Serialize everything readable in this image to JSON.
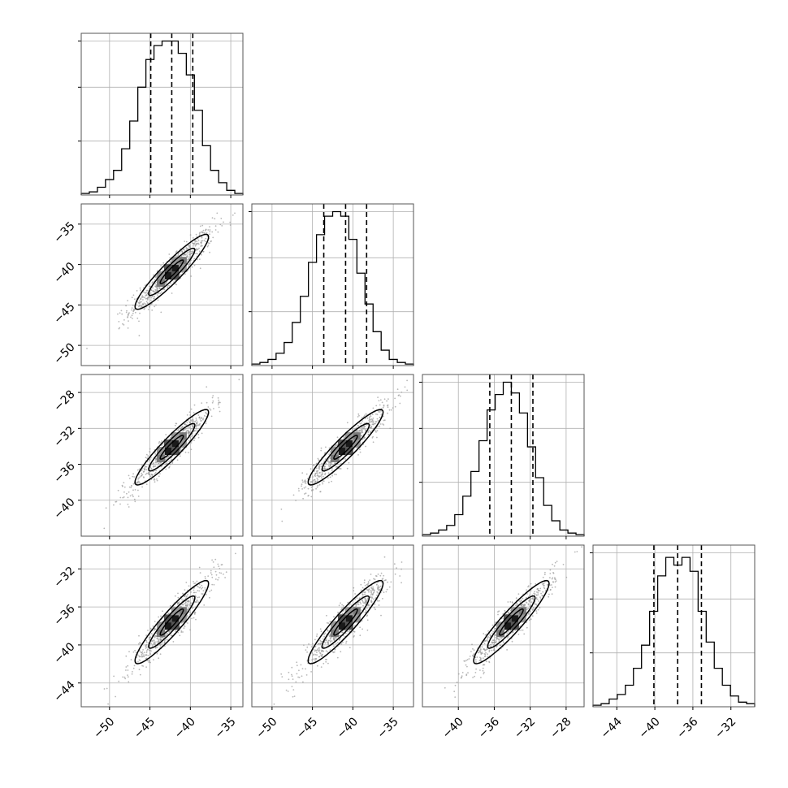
{
  "chart_data": {
    "type": "corner",
    "grid": true,
    "variables": [
      {
        "ticks": [
          -50,
          -45,
          -40,
          -35
        ],
        "tick_labels": [
          "−50",
          "−45",
          "−40",
          "−35"
        ],
        "xlim": [
          -53.5,
          -33.5
        ],
        "hist_ylim": [
          0,
          1.05
        ],
        "quantiles": [
          -44.9,
          -42.3,
          -39.7
        ],
        "hist_counts": [
          0.01,
          0.02,
          0.05,
          0.1,
          0.16,
          0.3,
          0.48,
          0.7,
          0.88,
          0.97,
          1.0,
          1.0,
          0.92,
          0.78,
          0.55,
          0.32,
          0.16,
          0.08,
          0.03,
          0.01
        ]
      },
      {
        "ticks": [
          -50,
          -45,
          -40,
          -35
        ],
        "tick_labels": [
          "−50",
          "−45",
          "−40",
          "−35"
        ],
        "xlim": [
          -52.5,
          -32.5
        ],
        "hist_ylim": [
          0,
          1.05
        ],
        "quantiles": [
          -43.6,
          -40.9,
          -38.3
        ],
        "hist_counts": [
          0.01,
          0.02,
          0.04,
          0.08,
          0.15,
          0.28,
          0.45,
          0.67,
          0.85,
          0.97,
          1.0,
          0.97,
          0.82,
          0.6,
          0.4,
          0.22,
          0.1,
          0.04,
          0.02,
          0.01
        ]
      },
      {
        "ticks": [
          -40,
          -36,
          -32,
          -28
        ],
        "tick_labels": [
          "−40",
          "−36",
          "−32",
          "−28"
        ],
        "xlim": [
          -44,
          -26
        ],
        "hist_ylim": [
          0,
          1.05
        ],
        "quantiles": [
          -36.5,
          -34.1,
          -31.7
        ],
        "hist_counts": [
          0.01,
          0.02,
          0.04,
          0.07,
          0.14,
          0.26,
          0.42,
          0.62,
          0.82,
          0.92,
          1.0,
          0.93,
          0.8,
          0.58,
          0.38,
          0.2,
          0.1,
          0.04,
          0.02,
          0.01
        ]
      },
      {
        "ticks": [
          -44,
          -40,
          -36,
          -32
        ],
        "tick_labels": [
          "−44",
          "−40",
          "−36",
          "−32"
        ],
        "xlim": [
          -46.5,
          -29.5
        ],
        "hist_ylim": [
          0,
          1.05
        ],
        "quantiles": [
          -40.1,
          -37.6,
          -35.1
        ],
        "hist_counts": [
          0.01,
          0.02,
          0.05,
          0.08,
          0.14,
          0.25,
          0.4,
          0.62,
          0.85,
          0.97,
          0.92,
          0.97,
          0.88,
          0.62,
          0.42,
          0.25,
          0.14,
          0.07,
          0.03,
          0.02
        ]
      }
    ],
    "correlations": {
      "1-0": 0.93,
      "2-0": 0.93,
      "2-1": 0.93,
      "3-0": 0.93,
      "3-1": 0.93,
      "3-2": 0.93
    }
  }
}
